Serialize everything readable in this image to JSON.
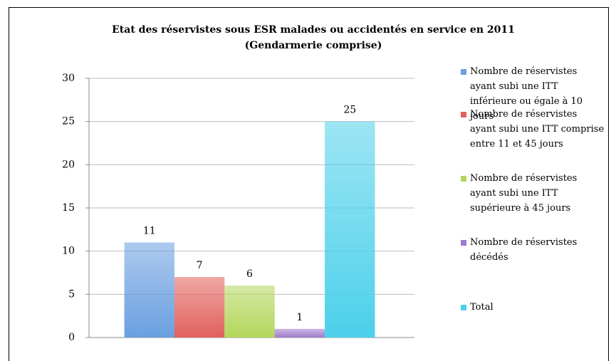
{
  "chart_data": {
    "type": "bar",
    "title": "Etat des réservistes sous ESR malades ou accidentés en service en 2011",
    "subtitle": "(Gendarmerie comprise)",
    "categories": [
      null
    ],
    "series": [
      {
        "name": "Nombre de réservistes ayant subi une ITT inférieure ou égale à 10 jours",
        "color": "#6a9fe0",
        "values": [
          11
        ]
      },
      {
        "name": "Nombre de réservistes ayant subi une ITT comprise entre 11 et 45 jours",
        "color": "#e2605c",
        "values": [
          7
        ]
      },
      {
        "name": "Nombre de réservistes ayant subi une ITT supérieure à 45 jours",
        "color": "#b3d65a",
        "values": [
          6
        ]
      },
      {
        "name": "Nombre de réservistes décédés",
        "color": "#9e7ccc",
        "values": [
          1
        ]
      },
      {
        "name": "Total",
        "color": "#4cd0ea",
        "values": [
          25
        ]
      }
    ],
    "ylim": [
      0,
      30
    ],
    "yticks": [
      0,
      5,
      10,
      15,
      20,
      25,
      30
    ],
    "grid": true,
    "legend": "right"
  }
}
